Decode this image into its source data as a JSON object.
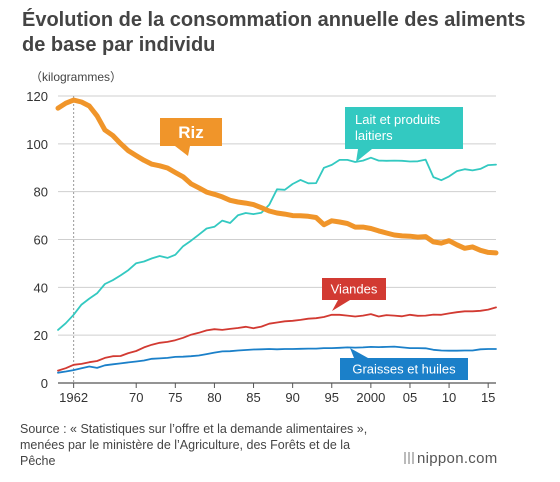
{
  "title_line1": "Évolution de la consommation annuelle des aliments",
  "title_line2": "de base par individu",
  "unit_label": "（kilogrammes）",
  "source_line1": "Source : « Statistiques sur l’offre et la demande alimentaires »,",
  "source_line2": "menées par le ministère de l’Agriculture, des Forêts et de la",
  "source_line3": "Pêche",
  "brand": "nippon.com",
  "chart_data": {
    "type": "line",
    "xlim": [
      1960,
      2016
    ],
    "ylim": [
      0,
      120
    ],
    "yticks": [
      0,
      20,
      40,
      60,
      80,
      100,
      120
    ],
    "xticks": [
      {
        "value": 1962,
        "label": "1962"
      },
      {
        "value": 1970,
        "label": "70"
      },
      {
        "value": 1975,
        "label": "75"
      },
      {
        "value": 1980,
        "label": "80"
      },
      {
        "value": 1985,
        "label": "85"
      },
      {
        "value": 1990,
        "label": "90"
      },
      {
        "value": 1995,
        "label": "95"
      },
      {
        "value": 2000,
        "label": "2000"
      },
      {
        "value": 2005,
        "label": "05"
      },
      {
        "value": 2010,
        "label": "10"
      },
      {
        "value": 2015,
        "label": "15"
      }
    ],
    "grid": true,
    "x": [
      1960,
      1961,
      1962,
      1963,
      1964,
      1965,
      1966,
      1967,
      1968,
      1969,
      1970,
      1971,
      1972,
      1973,
      1974,
      1975,
      1976,
      1977,
      1978,
      1979,
      1980,
      1981,
      1982,
      1983,
      1984,
      1985,
      1986,
      1987,
      1988,
      1989,
      1990,
      1991,
      1992,
      1993,
      1994,
      1995,
      1996,
      1997,
      1998,
      1999,
      2000,
      2001,
      2002,
      2003,
      2004,
      2005,
      2006,
      2007,
      2008,
      2009,
      2010,
      2011,
      2012,
      2013,
      2014,
      2015,
      2016
    ],
    "series": [
      {
        "name": "Riz",
        "color": "#f0952a",
        "width": 5,
        "values": [
          114.9,
          117.0,
          118.3,
          117.5,
          115.8,
          111.7,
          105.8,
          103.5,
          100.1,
          97.1,
          95.1,
          93.1,
          91.5,
          90.8,
          89.9,
          88.0,
          86.2,
          83.3,
          81.6,
          79.8,
          78.9,
          77.8,
          76.4,
          75.7,
          75.2,
          74.6,
          73.3,
          71.9,
          71.1,
          70.6,
          70.0,
          69.9,
          69.7,
          69.2,
          66.2,
          67.8,
          67.3,
          66.7,
          65.2,
          65.2,
          64.6,
          63.6,
          62.7,
          61.9,
          61.5,
          61.4,
          61.0,
          61.2,
          59.0,
          58.5,
          59.5,
          57.8,
          56.3,
          56.9,
          55.5,
          54.6,
          54.4
        ]
      },
      {
        "name": "Lait et produits laitiers",
        "color": "#33c9c1",
        "width": 1.8,
        "values": [
          22.2,
          25.0,
          28.5,
          32.8,
          35.3,
          37.5,
          41.4,
          43.0,
          45.0,
          47.2,
          50.1,
          50.8,
          52.1,
          53.1,
          52.3,
          53.6,
          57.2,
          59.5,
          62.0,
          64.6,
          65.3,
          67.9,
          66.9,
          70.1,
          71.1,
          70.6,
          71.2,
          74.5,
          81.0,
          80.8,
          83.2,
          84.9,
          83.5,
          83.6,
          90.0,
          91.2,
          93.3,
          93.3,
          92.4,
          93.0,
          94.2,
          93.0,
          92.9,
          93.0,
          92.9,
          92.6,
          92.7,
          93.4,
          86.1,
          84.8,
          86.4,
          88.6,
          89.4,
          88.9,
          89.5,
          91.1,
          91.3
        ]
      },
      {
        "name": "Viandes",
        "color": "#d23a32",
        "width": 1.8,
        "values": [
          5.2,
          6.2,
          7.6,
          8.0,
          8.7,
          9.2,
          10.5,
          11.2,
          11.3,
          12.5,
          13.4,
          14.9,
          16.0,
          16.8,
          17.2,
          17.9,
          18.9,
          20.2,
          21.0,
          22.0,
          22.5,
          22.2,
          22.6,
          23.0,
          23.5,
          22.9,
          23.6,
          24.8,
          25.3,
          25.8,
          26.0,
          26.4,
          26.9,
          27.1,
          27.6,
          28.5,
          28.5,
          28.2,
          27.8,
          28.2,
          28.8,
          27.8,
          28.4,
          28.2,
          27.9,
          28.5,
          28.1,
          28.2,
          28.6,
          28.5,
          29.1,
          29.6,
          30.0,
          30.0,
          30.2,
          30.7,
          31.6
        ]
      },
      {
        "name": "Graisses et huiles",
        "color": "#1b80c9",
        "width": 1.8,
        "values": [
          4.3,
          4.8,
          5.4,
          6.2,
          6.9,
          6.3,
          7.4,
          7.8,
          8.2,
          8.6,
          9.0,
          9.4,
          10.1,
          10.3,
          10.5,
          10.9,
          11.0,
          11.2,
          11.5,
          12.1,
          12.7,
          13.2,
          13.3,
          13.6,
          13.8,
          14.0,
          14.1,
          14.2,
          14.1,
          14.2,
          14.2,
          14.3,
          14.4,
          14.4,
          14.6,
          14.6,
          14.7,
          14.9,
          14.8,
          14.9,
          15.1,
          15.0,
          15.1,
          15.2,
          14.9,
          14.6,
          14.6,
          14.5,
          13.9,
          13.6,
          13.5,
          13.5,
          13.6,
          13.6,
          14.1,
          14.2,
          14.2
        ]
      }
    ],
    "reference_line": {
      "x": 1962
    }
  }
}
